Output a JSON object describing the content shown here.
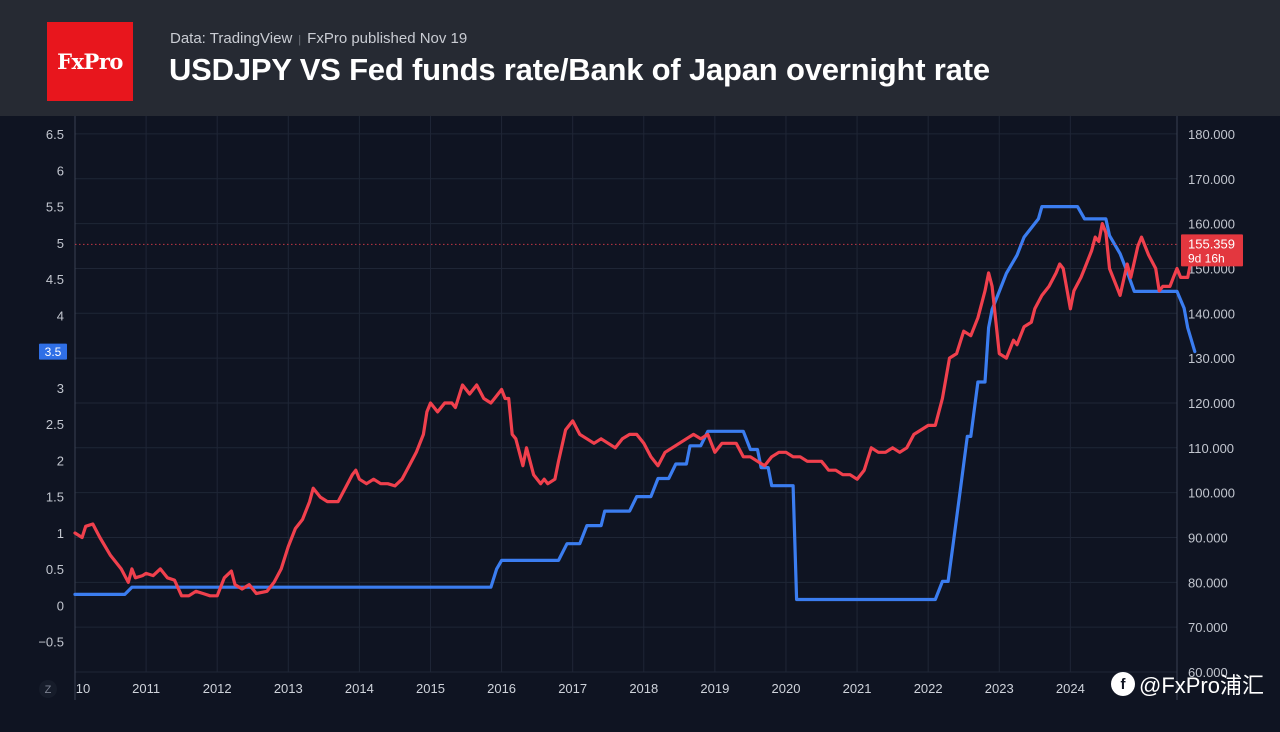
{
  "header": {
    "logo_text": "FxPro",
    "source": "Data: TradingView",
    "publisher": "FxPro published Nov 19",
    "title": "USDJPY VS Fed funds rate/Bank of Japan overnight rate"
  },
  "watermark": {
    "text": "@FxPro浦汇"
  },
  "colors": {
    "rate": "#3b7df0",
    "usdjpy": "#f0404d",
    "header_bg": "#262a33",
    "plot_bg": "#0f1422",
    "logo_bg": "#e8161d"
  },
  "chart_data": {
    "type": "line",
    "title": "USDJPY VS Fed funds rate/Bank of Japan overnight rate",
    "x_labels": [
      "10",
      "2011",
      "2012",
      "2013",
      "2014",
      "2015",
      "2016",
      "2017",
      "2018",
      "2019",
      "2020",
      "2021",
      "2022",
      "2023",
      "2024"
    ],
    "x_range": [
      2010.0,
      2025.5
    ],
    "left_axis": {
      "ylim": [
        -0.92,
        6.75
      ],
      "ticks": [
        "6.5",
        "6",
        "5.5",
        "5",
        "4.5",
        "4",
        "3.5",
        "3",
        "2.5",
        "2",
        "1.5",
        "1",
        "0.5",
        "0",
        "−0.5"
      ],
      "tick_values": [
        6.5,
        6,
        5.5,
        5,
        4.5,
        4,
        3.5,
        3,
        2.5,
        2,
        1.5,
        1,
        0.5,
        0,
        -0.5
      ],
      "badge_value": "3.5"
    },
    "right_axis": {
      "ylim": [
        60.0,
        184.0
      ],
      "ticks": [
        "180.000",
        "170.000",
        "160.000",
        "150.000",
        "140.000",
        "130.000",
        "120.000",
        "110.000",
        "100.000",
        "90.000",
        "80.000",
        "70.000",
        "60.000"
      ],
      "tick_values": [
        180,
        170,
        160,
        150,
        140,
        130,
        120,
        110,
        100,
        90,
        80,
        70,
        60
      ]
    },
    "last_price": {
      "value": 155.359,
      "label": "155.359",
      "countdown": "9d 16h"
    },
    "axis_mode_label": "Z",
    "series": [
      {
        "name": "Fed funds rate / Bank of Japan overnight rate",
        "axis": "left",
        "color": "#3b7df0",
        "points": [
          [
            2010.0,
            0.15
          ],
          [
            2010.7,
            0.15
          ],
          [
            2010.8,
            0.25
          ],
          [
            2015.85,
            0.25
          ],
          [
            2015.93,
            0.5
          ],
          [
            2016.0,
            0.62
          ],
          [
            2016.8,
            0.62
          ],
          [
            2016.92,
            0.85
          ],
          [
            2017.1,
            0.85
          ],
          [
            2017.2,
            1.1
          ],
          [
            2017.4,
            1.1
          ],
          [
            2017.45,
            1.3
          ],
          [
            2017.8,
            1.3
          ],
          [
            2017.9,
            1.5
          ],
          [
            2018.1,
            1.5
          ],
          [
            2018.2,
            1.75
          ],
          [
            2018.35,
            1.75
          ],
          [
            2018.45,
            1.95
          ],
          [
            2018.6,
            1.95
          ],
          [
            2018.65,
            2.2
          ],
          [
            2018.8,
            2.2
          ],
          [
            2018.9,
            2.4
          ],
          [
            2019.4,
            2.4
          ],
          [
            2019.5,
            2.15
          ],
          [
            2019.6,
            2.15
          ],
          [
            2019.65,
            1.9
          ],
          [
            2019.75,
            1.9
          ],
          [
            2019.8,
            1.65
          ],
          [
            2020.1,
            1.65
          ],
          [
            2020.15,
            0.08
          ],
          [
            2022.1,
            0.08
          ],
          [
            2022.2,
            0.33
          ],
          [
            2022.28,
            0.33
          ],
          [
            2022.35,
            0.83
          ],
          [
            2022.45,
            1.58
          ],
          [
            2022.55,
            2.33
          ],
          [
            2022.6,
            2.33
          ],
          [
            2022.7,
            3.08
          ],
          [
            2022.8,
            3.08
          ],
          [
            2022.85,
            3.83
          ],
          [
            2022.9,
            4.08
          ],
          [
            2023.0,
            4.33
          ],
          [
            2023.1,
            4.58
          ],
          [
            2023.25,
            4.83
          ],
          [
            2023.35,
            5.08
          ],
          [
            2023.55,
            5.33
          ],
          [
            2023.6,
            5.5
          ],
          [
            2024.1,
            5.5
          ],
          [
            2024.2,
            5.33
          ],
          [
            2024.5,
            5.33
          ],
          [
            2024.55,
            5.1
          ],
          [
            2024.7,
            4.85
          ],
          [
            2024.8,
            4.6
          ],
          [
            2024.9,
            4.33
          ],
          [
            2025.5,
            4.33
          ],
          [
            2025.6,
            4.1
          ],
          [
            2025.65,
            3.83
          ],
          [
            2025.75,
            3.5
          ]
        ]
      },
      {
        "name": "USDJPY",
        "axis": "right",
        "color": "#f0404d",
        "points": [
          [
            2010.0,
            91
          ],
          [
            2010.1,
            90
          ],
          [
            2010.15,
            92.5
          ],
          [
            2010.25,
            93
          ],
          [
            2010.35,
            90
          ],
          [
            2010.5,
            86
          ],
          [
            2010.65,
            83
          ],
          [
            2010.75,
            80
          ],
          [
            2010.8,
            83
          ],
          [
            2010.85,
            81
          ],
          [
            2010.95,
            81.5
          ],
          [
            2011.0,
            82
          ],
          [
            2011.1,
            81.5
          ],
          [
            2011.2,
            83
          ],
          [
            2011.3,
            81
          ],
          [
            2011.4,
            80.5
          ],
          [
            2011.5,
            77
          ],
          [
            2011.6,
            77
          ],
          [
            2011.7,
            78
          ],
          [
            2011.8,
            77.5
          ],
          [
            2011.9,
            77
          ],
          [
            2012.0,
            77
          ],
          [
            2012.1,
            81
          ],
          [
            2012.2,
            82.5
          ],
          [
            2012.25,
            79.5
          ],
          [
            2012.35,
            78.5
          ],
          [
            2012.45,
            79.5
          ],
          [
            2012.55,
            77.5
          ],
          [
            2012.7,
            78
          ],
          [
            2012.8,
            80
          ],
          [
            2012.9,
            83
          ],
          [
            2013.0,
            88
          ],
          [
            2013.1,
            92
          ],
          [
            2013.2,
            94
          ],
          [
            2013.3,
            98
          ],
          [
            2013.35,
            101
          ],
          [
            2013.45,
            99
          ],
          [
            2013.55,
            98
          ],
          [
            2013.7,
            98
          ],
          [
            2013.8,
            101
          ],
          [
            2013.9,
            104
          ],
          [
            2013.95,
            105
          ],
          [
            2014.0,
            103
          ],
          [
            2014.1,
            102
          ],
          [
            2014.2,
            103
          ],
          [
            2014.3,
            102
          ],
          [
            2014.4,
            102
          ],
          [
            2014.5,
            101.5
          ],
          [
            2014.6,
            103
          ],
          [
            2014.7,
            106
          ],
          [
            2014.8,
            109
          ],
          [
            2014.9,
            113
          ],
          [
            2014.95,
            118
          ],
          [
            2015.0,
            120
          ],
          [
            2015.1,
            118
          ],
          [
            2015.2,
            120
          ],
          [
            2015.3,
            120
          ],
          [
            2015.35,
            119
          ],
          [
            2015.45,
            124
          ],
          [
            2015.55,
            122
          ],
          [
            2015.65,
            124
          ],
          [
            2015.75,
            121
          ],
          [
            2015.85,
            120
          ],
          [
            2015.9,
            121
          ],
          [
            2016.0,
            123
          ],
          [
            2016.05,
            121
          ],
          [
            2016.1,
            121
          ],
          [
            2016.15,
            113
          ],
          [
            2016.2,
            112
          ],
          [
            2016.3,
            106
          ],
          [
            2016.35,
            110
          ],
          [
            2016.45,
            104
          ],
          [
            2016.55,
            102
          ],
          [
            2016.6,
            103
          ],
          [
            2016.65,
            102
          ],
          [
            2016.75,
            103
          ],
          [
            2016.8,
            107
          ],
          [
            2016.9,
            114
          ],
          [
            2017.0,
            116
          ],
          [
            2017.1,
            113
          ],
          [
            2017.2,
            112
          ],
          [
            2017.3,
            111
          ],
          [
            2017.4,
            112
          ],
          [
            2017.5,
            111
          ],
          [
            2017.6,
            110
          ],
          [
            2017.7,
            112
          ],
          [
            2017.8,
            113
          ],
          [
            2017.9,
            113
          ],
          [
            2018.0,
            111
          ],
          [
            2018.1,
            108
          ],
          [
            2018.2,
            106
          ],
          [
            2018.3,
            109
          ],
          [
            2018.4,
            110
          ],
          [
            2018.5,
            111
          ],
          [
            2018.6,
            112
          ],
          [
            2018.7,
            113
          ],
          [
            2018.8,
            112
          ],
          [
            2018.9,
            113
          ],
          [
            2019.0,
            109
          ],
          [
            2019.1,
            111
          ],
          [
            2019.2,
            111
          ],
          [
            2019.3,
            111
          ],
          [
            2019.4,
            108
          ],
          [
            2019.5,
            108
          ],
          [
            2019.6,
            107
          ],
          [
            2019.7,
            106
          ],
          [
            2019.8,
            108
          ],
          [
            2019.9,
            109
          ],
          [
            2020.0,
            109
          ],
          [
            2020.1,
            108
          ],
          [
            2020.2,
            108
          ],
          [
            2020.3,
            107
          ],
          [
            2020.4,
            107
          ],
          [
            2020.5,
            107
          ],
          [
            2020.55,
            106
          ],
          [
            2020.6,
            105
          ],
          [
            2020.7,
            105
          ],
          [
            2020.8,
            104
          ],
          [
            2020.9,
            104
          ],
          [
            2021.0,
            103
          ],
          [
            2021.1,
            105
          ],
          [
            2021.2,
            110
          ],
          [
            2021.3,
            109
          ],
          [
            2021.4,
            109
          ],
          [
            2021.5,
            110
          ],
          [
            2021.6,
            109
          ],
          [
            2021.7,
            110
          ],
          [
            2021.8,
            113
          ],
          [
            2021.9,
            114
          ],
          [
            2022.0,
            115
          ],
          [
            2022.1,
            115
          ],
          [
            2022.2,
            121
          ],
          [
            2022.3,
            130
          ],
          [
            2022.4,
            131
          ],
          [
            2022.5,
            136
          ],
          [
            2022.6,
            135
          ],
          [
            2022.7,
            139
          ],
          [
            2022.8,
            145
          ],
          [
            2022.85,
            149
          ],
          [
            2022.9,
            146
          ],
          [
            2023.0,
            131
          ],
          [
            2023.1,
            130
          ],
          [
            2023.2,
            134
          ],
          [
            2023.25,
            133
          ],
          [
            2023.35,
            137
          ],
          [
            2023.45,
            138
          ],
          [
            2023.5,
            141
          ],
          [
            2023.6,
            144
          ],
          [
            2023.7,
            146
          ],
          [
            2023.8,
            149
          ],
          [
            2023.85,
            151
          ],
          [
            2023.9,
            150
          ],
          [
            2024.0,
            141
          ],
          [
            2024.05,
            145
          ],
          [
            2024.15,
            148
          ],
          [
            2024.2,
            150
          ],
          [
            2024.3,
            154
          ],
          [
            2024.35,
            157
          ],
          [
            2024.4,
            156
          ],
          [
            2024.45,
            160
          ],
          [
            2024.5,
            158
          ],
          [
            2024.55,
            150
          ],
          [
            2024.65,
            146
          ],
          [
            2024.7,
            144
          ],
          [
            2024.8,
            151
          ],
          [
            2024.85,
            148
          ],
          [
            2024.95,
            155
          ],
          [
            2025.0,
            157
          ],
          [
            2025.05,
            155
          ],
          [
            2025.1,
            153
          ],
          [
            2025.2,
            150
          ],
          [
            2025.25,
            145
          ],
          [
            2025.3,
            146
          ],
          [
            2025.4,
            146
          ],
          [
            2025.45,
            148
          ],
          [
            2025.5,
            150
          ],
          [
            2025.55,
            148
          ],
          [
            2025.65,
            148
          ],
          [
            2025.7,
            152
          ],
          [
            2025.75,
            155.359
          ]
        ]
      }
    ]
  }
}
